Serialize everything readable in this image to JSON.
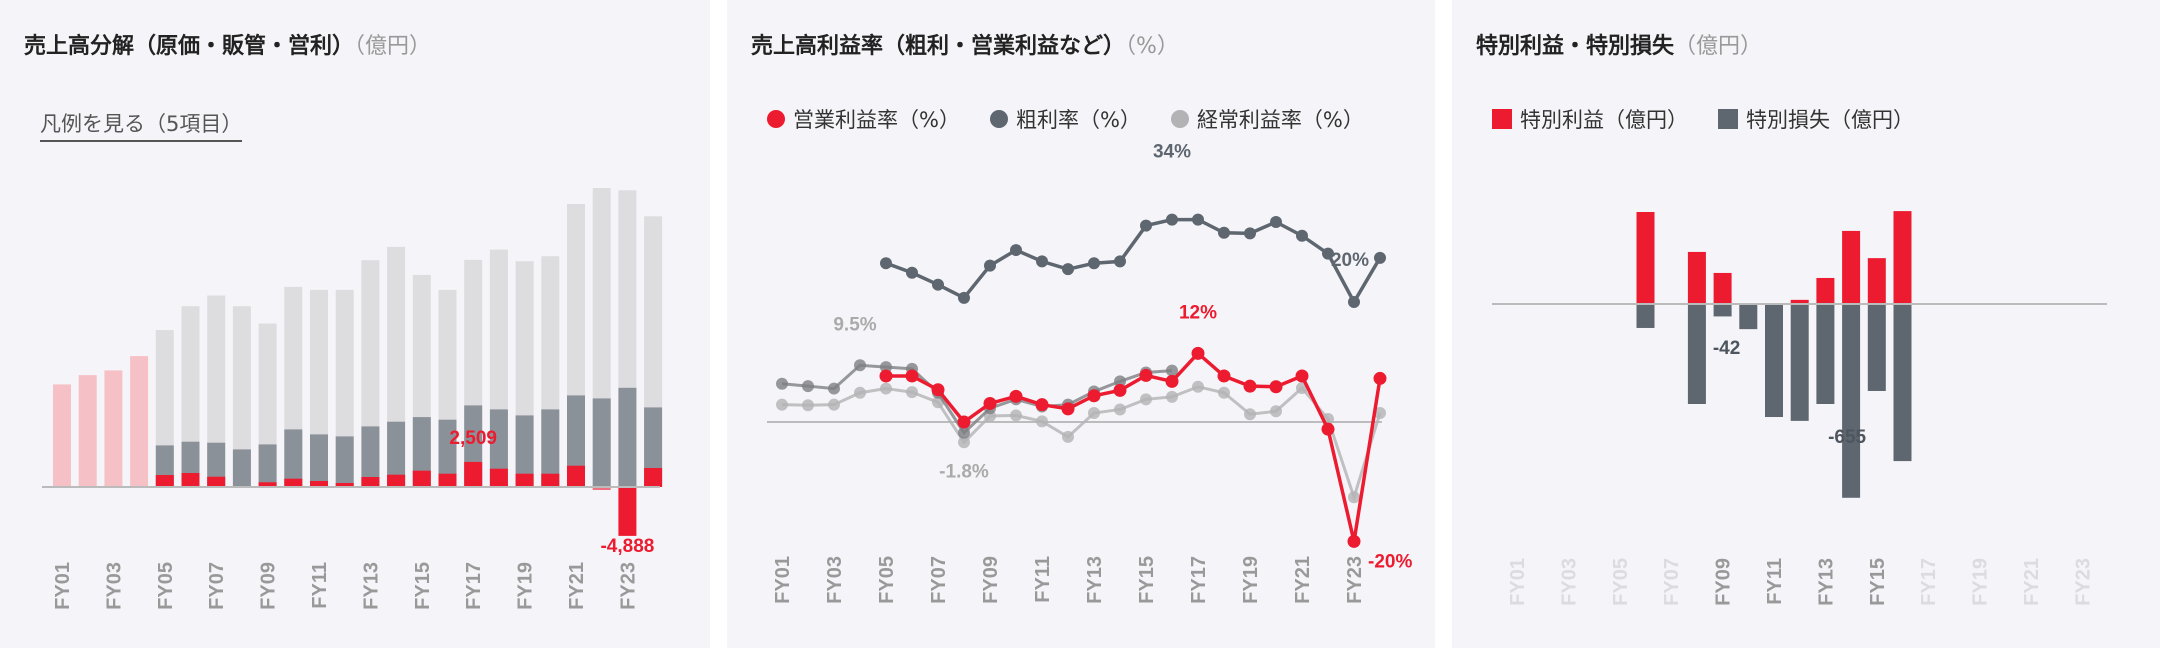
{
  "colors": {
    "red": "#ed1b2f",
    "dark": "#5e6670",
    "mid": "#8b9199",
    "light": "#dddde0",
    "pink": "#f5c1c7",
    "ordinary": "#b3b3b5",
    "op_old": "#7d7f82",
    "axis": "#bbbbbb"
  },
  "chart_data": [
    {
      "type": "bar",
      "title": "売上高分解（原価・販管・営利）",
      "unit": "（億円）",
      "legend_link": "凡例を見る（5項目）",
      "categories": [
        "FY01",
        "FY02",
        "FY03",
        "FY04",
        "FY05",
        "FY06",
        "FY07",
        "FY08",
        "FY09",
        "FY10",
        "FY11",
        "FY12",
        "FY13",
        "FY14",
        "FY15",
        "FY16",
        "FY17",
        "FY18",
        "FY19",
        "FY20",
        "FY21",
        "FY22",
        "FY23",
        "FY24"
      ],
      "tick_labels": [
        "FY01",
        "FY03",
        "FY05",
        "FY07",
        "FY09",
        "FY11",
        "FY13",
        "FY15",
        "FY17",
        "FY19",
        "FY21",
        "FY23"
      ],
      "series": [
        {
          "name": "売上高",
          "values": [
            10260,
            11190,
            11660,
            13090,
            15690,
            18080,
            19150,
            18080,
            16350,
            20010,
            19710,
            19710,
            22680,
            24010,
            21210,
            19710,
            22710,
            23740,
            22580,
            23080,
            28300,
            29900,
            29670,
            27070
          ]
        },
        {
          "name": "粗利",
          "values": [
            null,
            null,
            null,
            null,
            4160,
            4530,
            4430,
            3760,
            4260,
            5760,
            5260,
            5060,
            6060,
            6530,
            6990,
            6730,
            8160,
            7760,
            7160,
            7760,
            9160,
            8860,
            9920,
            7960
          ]
        },
        {
          "name": "営業利益",
          "values": [
            null,
            null,
            null,
            null,
            1200,
            1400,
            1030,
            70,
            470,
            830,
            600,
            400,
            1000,
            1230,
            1630,
            1330,
            2509,
            1830,
            1330,
            1330,
            2130,
            -300,
            -4888,
            1900
          ]
        }
      ],
      "annotations": [
        {
          "category": "FY17",
          "text": "2,509"
        },
        {
          "category": "FY23",
          "text": "-4,888"
        }
      ]
    },
    {
      "type": "line",
      "title": "売上高利益率（粗利・営業利益など）",
      "unit": "（%）",
      "categories": [
        "FY01",
        "FY02",
        "FY03",
        "FY04",
        "FY05",
        "FY06",
        "FY07",
        "FY08",
        "FY09",
        "FY10",
        "FY11",
        "FY12",
        "FY13",
        "FY14",
        "FY15",
        "FY16",
        "FY17",
        "FY18",
        "FY19",
        "FY20",
        "FY21",
        "FY22",
        "FY23",
        "FY24"
      ],
      "tick_labels": [
        "FY01",
        "FY03",
        "FY05",
        "FY07",
        "FY09",
        "FY11",
        "FY13",
        "FY15",
        "FY17",
        "FY19",
        "FY21",
        "FY23"
      ],
      "legend": [
        "営業利益率（%）",
        "粗利率（%）",
        "経常利益率（%）"
      ],
      "series": [
        {
          "name": "経常利益率（%）",
          "values": [
            2.9,
            2.8,
            2.9,
            4.9,
            5.6,
            5.0,
            3.3,
            -3.4,
            1.0,
            1.1,
            0.1,
            -2.5,
            1.5,
            2.1,
            3.8,
            4.2,
            5.9,
            4.9,
            1.3,
            1.8,
            5.7,
            0.5,
            -12.6,
            1.5
          ]
        },
        {
          "name": "",
          "values": [
            6.4,
            6.0,
            5.6,
            9.5,
            9.2,
            8.9,
            4.9,
            -1.8,
            2.3,
            3.8,
            2.6,
            2.9,
            5.1,
            6.8,
            8.3,
            8.6,
            null,
            null,
            null,
            null,
            null,
            null,
            null,
            null
          ]
        },
        {
          "name": "粗利率（%）",
          "values": [
            null,
            null,
            null,
            null,
            26.6,
            25.0,
            23.0,
            20.8,
            26.2,
            28.8,
            26.9,
            25.6,
            26.6,
            26.9,
            32.9,
            33.9,
            33.9,
            31.7,
            31.6,
            33.5,
            31.2,
            28.2,
            20.1,
            27.5
          ]
        },
        {
          "name": "営業利益率（%）",
          "values": [
            null,
            null,
            null,
            null,
            7.7,
            7.7,
            5.4,
            0.0,
            3.1,
            4.3,
            2.9,
            2.2,
            4.4,
            5.3,
            7.8,
            6.8,
            11.5,
            7.7,
            6.0,
            5.9,
            7.7,
            -1.2,
            -20.0,
            7.3
          ]
        }
      ],
      "annotations": [
        {
          "text": "34%",
          "category": "FY16",
          "series": 2
        },
        {
          "text": "20%",
          "category": "FY23",
          "series": 2
        },
        {
          "text": "12%",
          "category": "FY17",
          "series": 3
        },
        {
          "text": "-20%",
          "category": "FY23",
          "series": 3
        },
        {
          "text": "9.5%",
          "category": "FY04",
          "series": 1
        },
        {
          "text": "-1.8%",
          "category": "FY08",
          "series": 1
        }
      ]
    },
    {
      "type": "bar",
      "title": "特別利益・特別損失",
      "unit": "（億円）",
      "categories": [
        "FY01",
        "FY02",
        "FY03",
        "FY04",
        "FY05",
        "FY06",
        "FY07",
        "FY08",
        "FY09",
        "FY10",
        "FY11",
        "FY12",
        "FY13",
        "FY14",
        "FY15",
        "FY16",
        "FY17",
        "FY18",
        "FY19",
        "FY20",
        "FY21",
        "FY22",
        "FY23",
        "FY24"
      ],
      "tick_labels": [
        "FY01",
        "FY03",
        "FY05",
        "FY07",
        "FY09",
        "FY11",
        "FY13",
        "FY15",
        "FY17",
        "FY19",
        "FY21",
        "FY23"
      ],
      "active_ticks": [
        "FY09",
        "FY11",
        "FY13",
        "FY15"
      ],
      "legend": [
        "特別利益（億円）",
        "特別損失（億円）"
      ],
      "series": [
        {
          "name": "特別利益（億円）",
          "values": [
            null,
            null,
            null,
            null,
            null,
            311,
            null,
            176,
            105,
            null,
            null,
            14,
            88,
            247,
            155,
            314,
            null,
            null,
            null,
            null,
            null,
            null,
            null,
            null
          ]
        },
        {
          "name": "特別損失（億円）",
          "values": [
            null,
            null,
            null,
            null,
            null,
            -81,
            null,
            -338,
            -42,
            -85,
            -382,
            -395,
            -338,
            -655,
            -294,
            -531,
            null,
            null,
            null,
            null,
            null,
            null,
            null,
            null
          ]
        }
      ],
      "annotations": [
        {
          "category": "FY09",
          "text": "-42"
        },
        {
          "category": "FY14",
          "text": "-655"
        }
      ]
    }
  ]
}
